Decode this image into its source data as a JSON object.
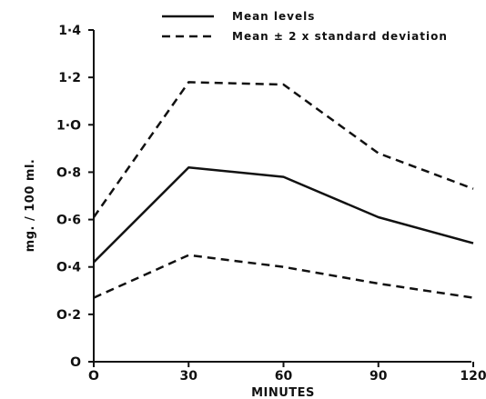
{
  "chart_data": {
    "type": "line",
    "xlabel": "MINUTES",
    "ylabel": "mg. / 100 ml.",
    "x": [
      0,
      30,
      60,
      90,
      120
    ],
    "xlim": [
      0,
      120
    ],
    "ylim": [
      0,
      1.4
    ],
    "x_ticks": [
      "O",
      "30",
      "60",
      "90",
      "120"
    ],
    "y_ticks": [
      "O",
      "O·2",
      "O·4",
      "O·6",
      "O·8",
      "1·O",
      "1·2",
      "1·4"
    ],
    "y_tick_values": [
      0,
      0.2,
      0.4,
      0.6,
      0.8,
      1.0,
      1.2,
      1.4
    ],
    "grid": false,
    "legend_position": "top",
    "series": [
      {
        "name": "Mean levels",
        "style": "solid",
        "values": [
          0.42,
          0.82,
          0.78,
          0.61,
          0.5
        ]
      },
      {
        "name": "Mean ± 2 x standard deviation",
        "style": "dashed",
        "values": [
          0.61,
          1.18,
          1.17,
          0.88,
          0.73
        ]
      },
      {
        "name": "",
        "style": "dashed",
        "values": [
          0.27,
          0.45,
          0.4,
          0.33,
          0.27
        ]
      }
    ]
  },
  "colors": {
    "line": "#111111"
  }
}
